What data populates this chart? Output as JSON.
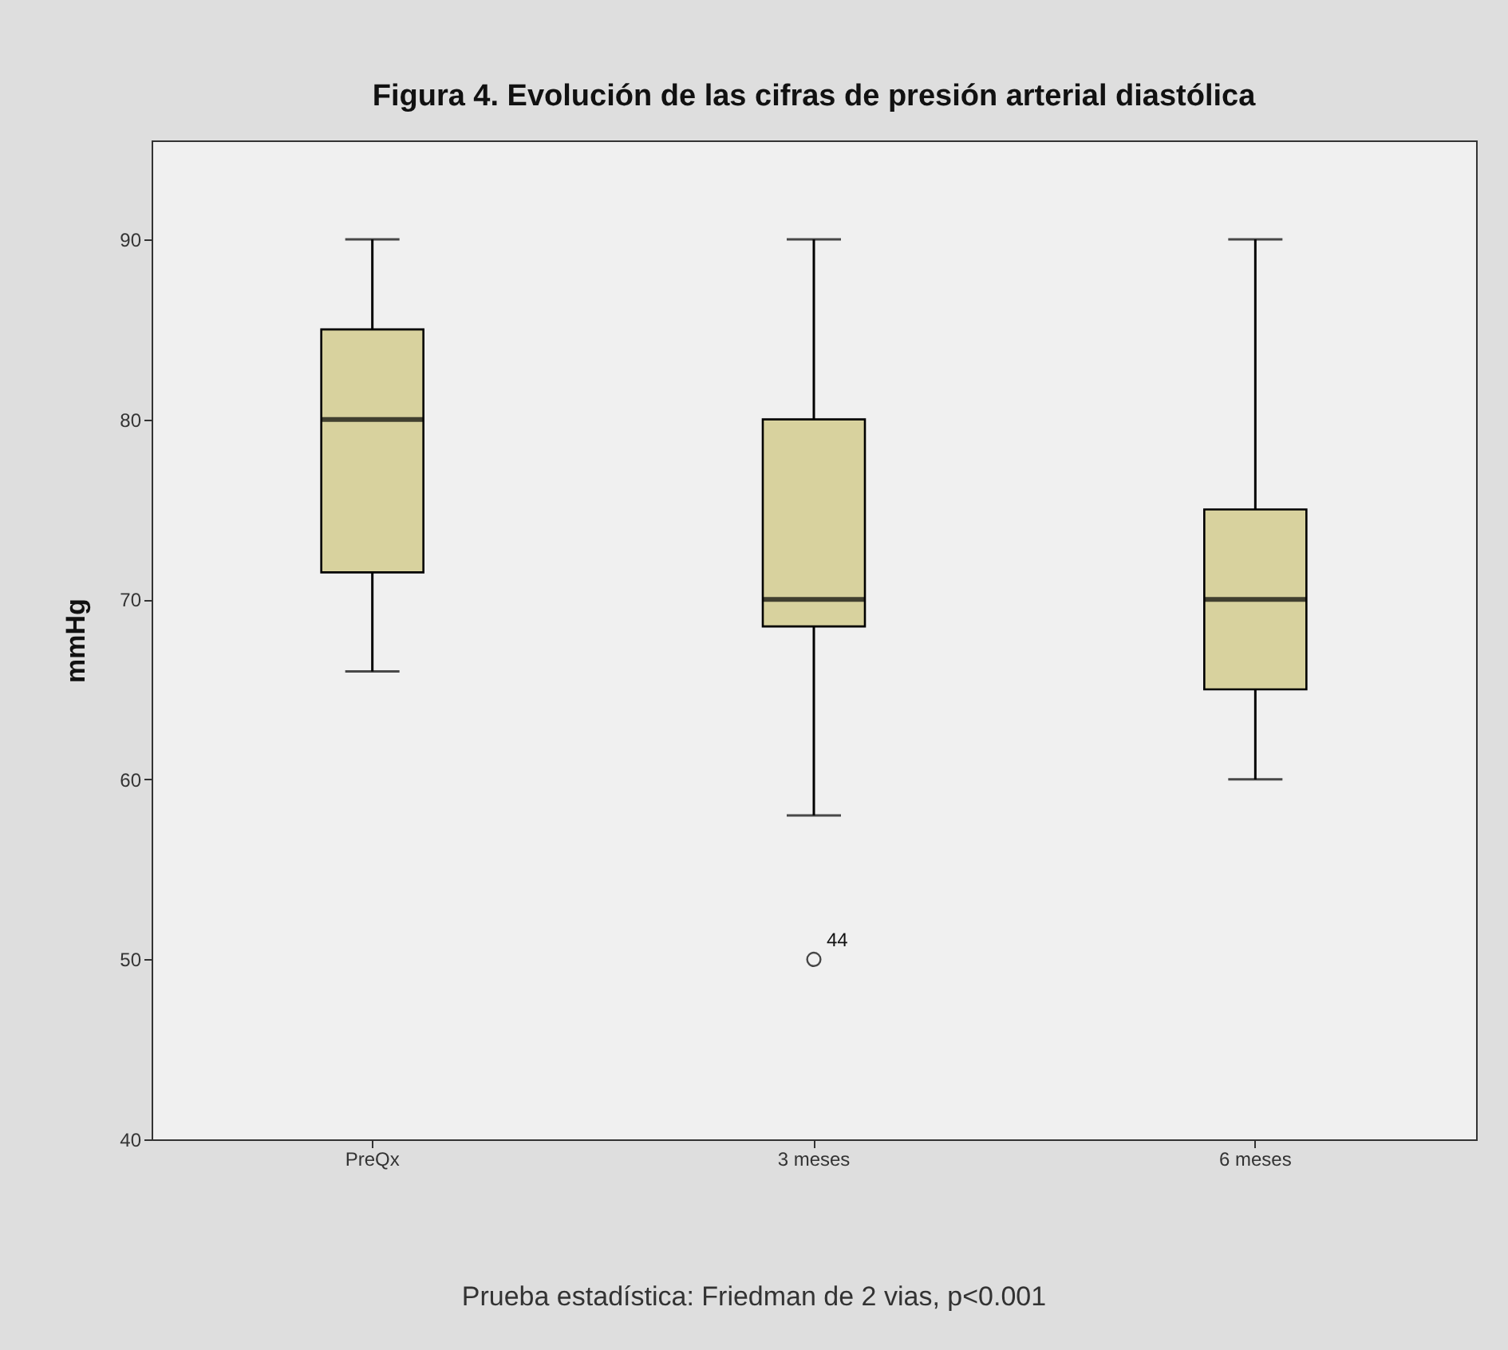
{
  "chart_data": {
    "type": "box",
    "title": "Figura 4. Evolución de las cifras de presión arterial diastólica",
    "ylabel": "mmHg",
    "categories": [
      "PreQx",
      "3 meses",
      "6 meses"
    ],
    "series": [
      {
        "color": "#d8d29e",
        "boxes": [
          {
            "low": 66,
            "q1": 71.5,
            "median": 80,
            "q3": 85,
            "high": 90
          },
          {
            "low": 58,
            "q1": 68.5,
            "median": 70,
            "q3": 80,
            "high": 90,
            "outliers": [
              50
            ]
          },
          {
            "low": 60,
            "q1": 65,
            "median": 70,
            "q3": 75,
            "high": 90
          }
        ]
      }
    ],
    "ylim": [
      40,
      95.5
    ],
    "yticks": [
      40,
      50,
      60,
      70,
      80,
      90
    ],
    "grid": false,
    "annotations": [
      "44",
      "Prueba estadística: Friedman de 2 vias, p<0.001"
    ]
  }
}
